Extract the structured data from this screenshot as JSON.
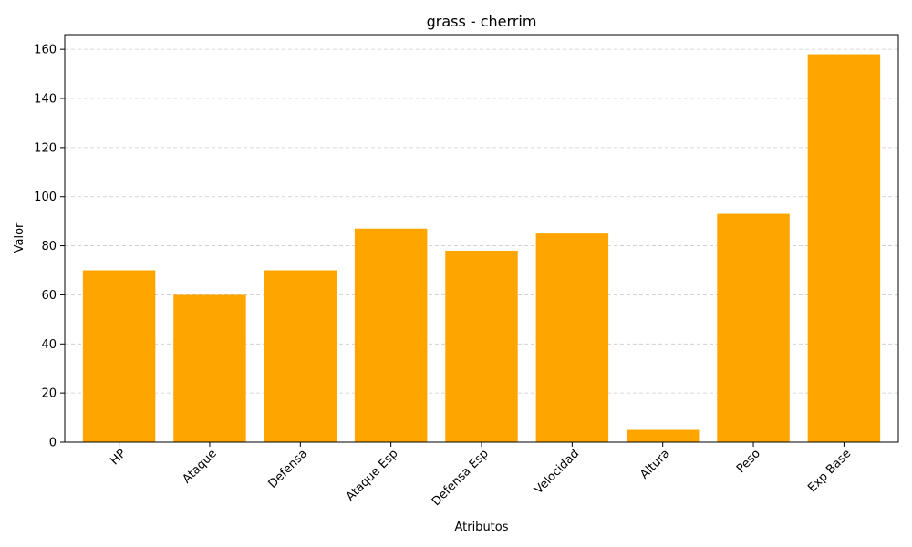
{
  "chart_data": {
    "type": "bar",
    "title": "grass - cherrim",
    "xlabel": "Atributos",
    "ylabel": "Valor",
    "categories": [
      "HP",
      "Ataque",
      "Defensa",
      "Ataque Esp",
      "Defensa Esp",
      "Velocidad",
      "Altura",
      "Peso",
      "Exp Base"
    ],
    "values": [
      70,
      60,
      70,
      87,
      78,
      85,
      5,
      93,
      158
    ],
    "ylim": [
      0,
      166
    ],
    "yticks": [
      0,
      20,
      40,
      60,
      80,
      100,
      120,
      140,
      160
    ],
    "grid": "horizontal dashed",
    "legend": "none",
    "bar_color": "#FFA500",
    "grid_color": "#cccccc"
  }
}
